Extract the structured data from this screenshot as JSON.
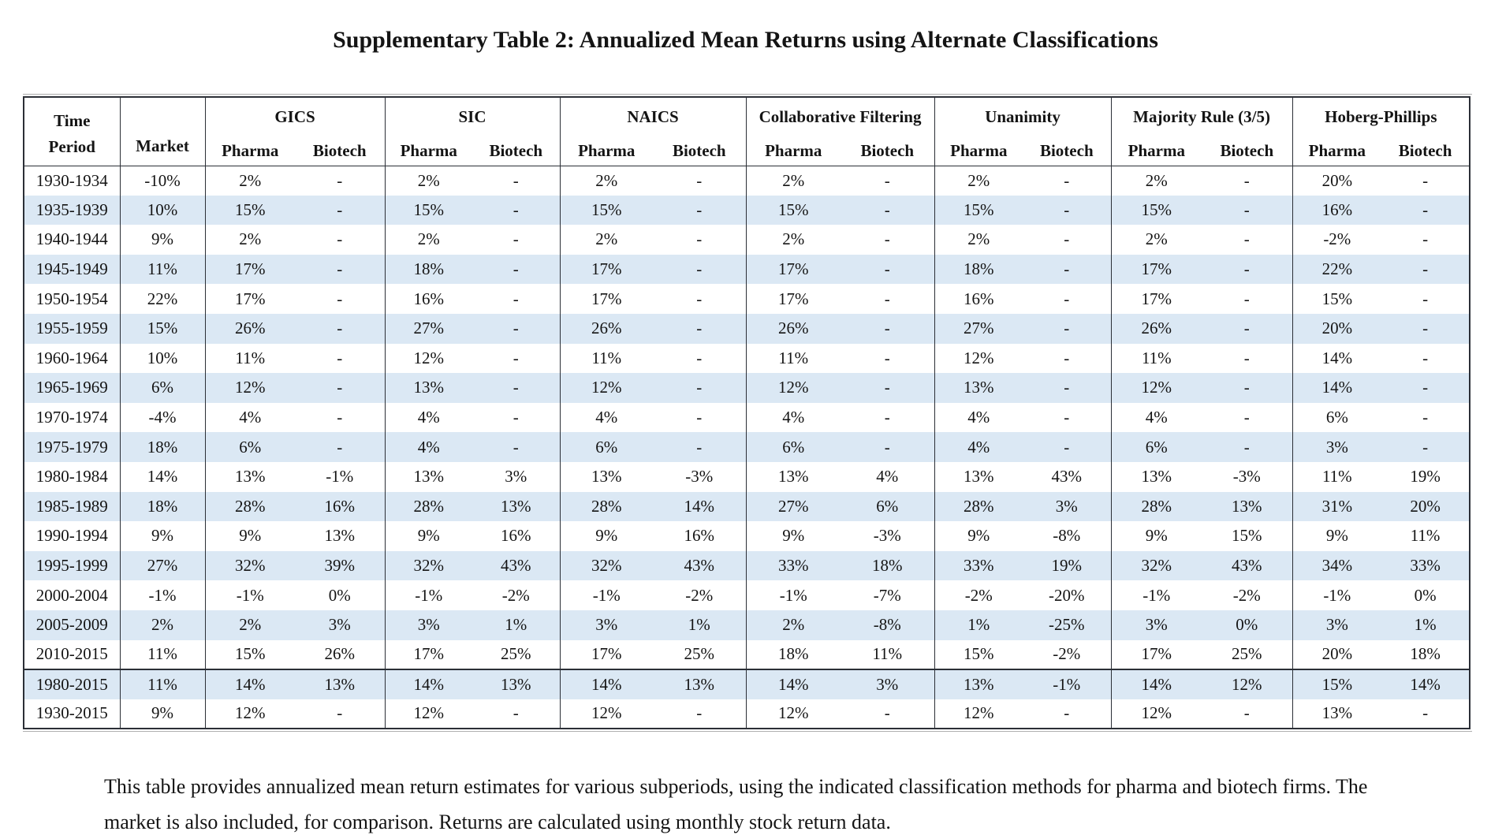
{
  "title": "Supplementary Table 2: Annualized Mean Returns using Alternate Classifications",
  "colors": {
    "stripe_blue": "#dbe8f4",
    "border_dark": "#2b2f36",
    "border_light": "#ababab",
    "text": "#141414",
    "background": "#ffffff"
  },
  "table": {
    "time_period_header": "Time Period",
    "market_header": "Market",
    "groups": [
      {
        "label": "GICS"
      },
      {
        "label": "SIC"
      },
      {
        "label": "NAICS"
      },
      {
        "label": "Collaborative Filtering"
      },
      {
        "label": "Unanimity"
      },
      {
        "label": "Majority Rule (3/5)"
      },
      {
        "label": "Hoberg-Phillips"
      }
    ],
    "sub_headers": {
      "pharma": "Pharma",
      "biotech": "Biotech"
    },
    "rows": [
      {
        "period": "1930-1934",
        "values": [
          "-10%",
          "2%",
          "-",
          "2%",
          "-",
          "2%",
          "-",
          "2%",
          "-",
          "2%",
          "-",
          "2%",
          "-",
          "20%",
          "-"
        ]
      },
      {
        "period": "1935-1939",
        "values": [
          "10%",
          "15%",
          "-",
          "15%",
          "-",
          "15%",
          "-",
          "15%",
          "-",
          "15%",
          "-",
          "15%",
          "-",
          "16%",
          "-"
        ]
      },
      {
        "period": "1940-1944",
        "values": [
          "9%",
          "2%",
          "-",
          "2%",
          "-",
          "2%",
          "-",
          "2%",
          "-",
          "2%",
          "-",
          "2%",
          "-",
          "-2%",
          "-"
        ]
      },
      {
        "period": "1945-1949",
        "values": [
          "11%",
          "17%",
          "-",
          "18%",
          "-",
          "17%",
          "-",
          "17%",
          "-",
          "18%",
          "-",
          "17%",
          "-",
          "22%",
          "-"
        ]
      },
      {
        "period": "1950-1954",
        "values": [
          "22%",
          "17%",
          "-",
          "16%",
          "-",
          "17%",
          "-",
          "17%",
          "-",
          "16%",
          "-",
          "17%",
          "-",
          "15%",
          "-"
        ]
      },
      {
        "period": "1955-1959",
        "values": [
          "15%",
          "26%",
          "-",
          "27%",
          "-",
          "26%",
          "-",
          "26%",
          "-",
          "27%",
          "-",
          "26%",
          "-",
          "20%",
          "-"
        ]
      },
      {
        "period": "1960-1964",
        "values": [
          "10%",
          "11%",
          "-",
          "12%",
          "-",
          "11%",
          "-",
          "11%",
          "-",
          "12%",
          "-",
          "11%",
          "-",
          "14%",
          "-"
        ]
      },
      {
        "period": "1965-1969",
        "values": [
          "6%",
          "12%",
          "-",
          "13%",
          "-",
          "12%",
          "-",
          "12%",
          "-",
          "13%",
          "-",
          "12%",
          "-",
          "14%",
          "-"
        ]
      },
      {
        "period": "1970-1974",
        "values": [
          "-4%",
          "4%",
          "-",
          "4%",
          "-",
          "4%",
          "-",
          "4%",
          "-",
          "4%",
          "-",
          "4%",
          "-",
          "6%",
          "-"
        ]
      },
      {
        "period": "1975-1979",
        "values": [
          "18%",
          "6%",
          "-",
          "4%",
          "-",
          "6%",
          "-",
          "6%",
          "-",
          "4%",
          "-",
          "6%",
          "-",
          "3%",
          "-"
        ]
      },
      {
        "period": "1980-1984",
        "values": [
          "14%",
          "13%",
          "-1%",
          "13%",
          "3%",
          "13%",
          "-3%",
          "13%",
          "4%",
          "13%",
          "43%",
          "13%",
          "-3%",
          "11%",
          "19%"
        ]
      },
      {
        "period": "1985-1989",
        "values": [
          "18%",
          "28%",
          "16%",
          "28%",
          "13%",
          "28%",
          "14%",
          "27%",
          "6%",
          "28%",
          "3%",
          "28%",
          "13%",
          "31%",
          "20%"
        ]
      },
      {
        "period": "1990-1994",
        "values": [
          "9%",
          "9%",
          "13%",
          "9%",
          "16%",
          "9%",
          "16%",
          "9%",
          "-3%",
          "9%",
          "-8%",
          "9%",
          "15%",
          "9%",
          "11%"
        ]
      },
      {
        "period": "1995-1999",
        "values": [
          "27%",
          "32%",
          "39%",
          "32%",
          "43%",
          "32%",
          "43%",
          "33%",
          "18%",
          "33%",
          "19%",
          "32%",
          "43%",
          "34%",
          "33%"
        ]
      },
      {
        "period": "2000-2004",
        "values": [
          "-1%",
          "-1%",
          "0%",
          "-1%",
          "-2%",
          "-1%",
          "-2%",
          "-1%",
          "-7%",
          "-2%",
          "-20%",
          "-1%",
          "-2%",
          "-1%",
          "0%"
        ]
      },
      {
        "period": "2005-2009",
        "values": [
          "2%",
          "2%",
          "3%",
          "3%",
          "1%",
          "3%",
          "1%",
          "2%",
          "-8%",
          "1%",
          "-25%",
          "3%",
          "0%",
          "3%",
          "1%"
        ]
      },
      {
        "period": "2010-2015",
        "values": [
          "11%",
          "15%",
          "26%",
          "17%",
          "25%",
          "17%",
          "25%",
          "18%",
          "11%",
          "15%",
          "-2%",
          "17%",
          "25%",
          "20%",
          "18%"
        ]
      },
      {
        "period": "1980-2015",
        "separator_before": true,
        "values": [
          "11%",
          "14%",
          "13%",
          "14%",
          "13%",
          "14%",
          "13%",
          "14%",
          "3%",
          "13%",
          "-1%",
          "14%",
          "12%",
          "15%",
          "14%"
        ]
      },
      {
        "period": "1930-2015",
        "values": [
          "9%",
          "12%",
          "-",
          "12%",
          "-",
          "12%",
          "-",
          "12%",
          "-",
          "12%",
          "-",
          "12%",
          "-",
          "13%",
          "-"
        ]
      }
    ]
  },
  "footnote": "This table provides annualized mean return estimates for various subperiods, using the indicated classification methods for pharma and biotech firms. The market is also included, for comparison. Returns are calculated using monthly stock return data."
}
